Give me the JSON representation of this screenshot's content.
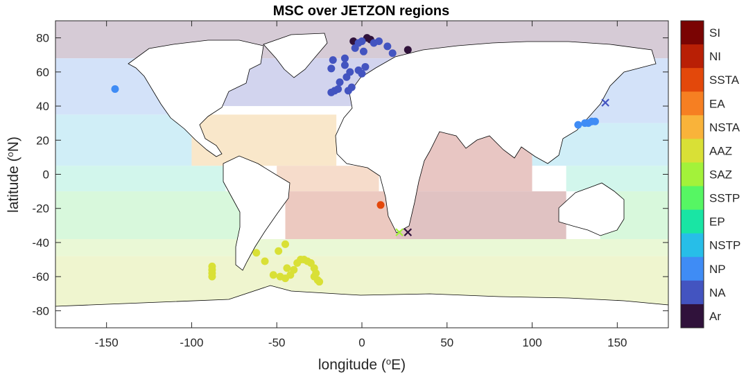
{
  "chart_data": {
    "type": "scatter",
    "title": "MSC over JETZON regions",
    "xlabel": {
      "main": "longitude (",
      "sup": "o",
      "end": "E)"
    },
    "ylabel": {
      "main": "latitude (",
      "sup": "o",
      "end": "N)"
    },
    "xlim": [
      -180,
      180
    ],
    "ylim": [
      -90,
      90
    ],
    "xticks": [
      -150,
      -100,
      -50,
      0,
      50,
      100,
      150
    ],
    "yticks": [
      80,
      60,
      40,
      20,
      0,
      -20,
      -40,
      -60,
      -80
    ],
    "colorbar": {
      "regions": [
        "SI",
        "NI",
        "SSTA",
        "EA",
        "NSTA",
        "AAZ",
        "SAZ",
        "SSTP",
        "EP",
        "NSTP",
        "NP",
        "NA",
        "Ar"
      ],
      "colors": [
        "#7a0403",
        "#b91f05",
        "#e3480b",
        "#f67f22",
        "#f9b33a",
        "#d9e036",
        "#a3f23a",
        "#56f663",
        "#19e5a4",
        "#27bee8",
        "#3f8cf5",
        "#4354c0",
        "#30123b"
      ]
    },
    "background_zones": [
      {
        "region": "Ar",
        "color": "#d6cbd6",
        "latmin": 68,
        "latmax": 90,
        "lonmin": -180,
        "lonmax": 180
      },
      {
        "region": "NA",
        "color": "#d2d4ee",
        "latmin": 40,
        "latmax": 68,
        "lonmin": -100,
        "lonmax": 40
      },
      {
        "region": "NP",
        "color": "#d3e2f9",
        "latmin": 35,
        "latmax": 68,
        "lonmin": -180,
        "lonmax": -100
      },
      {
        "region": "NP",
        "color": "#d3e2f9",
        "latmin": 30,
        "latmax": 68,
        "lonmin": 100,
        "lonmax": 180
      },
      {
        "region": "NSTP",
        "color": "#d0eef7",
        "latmin": 5,
        "latmax": 35,
        "lonmin": -180,
        "lonmax": -100
      },
      {
        "region": "NSTP",
        "color": "#d0eef7",
        "latmin": 5,
        "latmax": 30,
        "lonmin": 100,
        "lonmax": 180
      },
      {
        "region": "EP",
        "color": "#d2f6ec",
        "latmin": -10,
        "latmax": 5,
        "lonmin": -180,
        "lonmax": -80
      },
      {
        "region": "EP",
        "color": "#d2f6ec",
        "latmin": -10,
        "latmax": 5,
        "lonmin": 120,
        "lonmax": 180
      },
      {
        "region": "SSTP",
        "color": "#d8f8dc",
        "latmin": -38,
        "latmax": -10,
        "lonmin": -180,
        "lonmax": -70
      },
      {
        "region": "SSTP",
        "color": "#d8f8dc",
        "latmin": -38,
        "latmax": -10,
        "lonmin": 140,
        "lonmax": 180
      },
      {
        "region": "NSTA",
        "color": "#f9e7ca",
        "latmin": 5,
        "latmax": 35,
        "lonmin": -100,
        "lonmax": -15
      },
      {
        "region": "EA",
        "color": "#f6dccb",
        "latmin": -10,
        "latmax": 5,
        "lonmin": -50,
        "lonmax": 10
      },
      {
        "region": "SSTA",
        "color": "#ecc9c0",
        "latmin": -38,
        "latmax": -10,
        "lonmin": -45,
        "lonmax": 20
      },
      {
        "region": "NI",
        "color": "#e8c6c3",
        "latmin": -10,
        "latmax": 25,
        "lonmin": 20,
        "lonmax": 100
      },
      {
        "region": "SI",
        "color": "#e0c2c2",
        "latmin": -38,
        "latmax": -10,
        "lonmin": 20,
        "lonmax": 120
      },
      {
        "region": "SAZ",
        "color": "#eaf8d6",
        "latmin": -48,
        "latmax": -38,
        "lonmin": -180,
        "lonmax": 180
      },
      {
        "region": "AAZ",
        "color": "#eff5cf",
        "latmin": -78,
        "latmax": -48,
        "lonmin": -180,
        "lonmax": 180
      }
    ],
    "series": [
      {
        "region": "Ar",
        "color": "#30123b",
        "marker": "o",
        "points": [
          [
            -5,
            78
          ],
          [
            3,
            80
          ],
          [
            5,
            79
          ],
          [
            27,
            73
          ]
        ]
      },
      {
        "region": "Ar",
        "color": "#30123b",
        "marker": "x",
        "points": [
          [
            27,
            -34
          ]
        ]
      },
      {
        "region": "NA",
        "color": "#4354c0",
        "marker": "o",
        "points": [
          [
            -18,
            62
          ],
          [
            -17,
            67
          ],
          [
            -10,
            64
          ],
          [
            -10,
            68
          ],
          [
            -7,
            60
          ],
          [
            -2,
            61
          ],
          [
            0,
            59
          ],
          [
            2,
            63
          ],
          [
            -4,
            74
          ],
          [
            -2,
            77
          ],
          [
            0,
            78
          ],
          [
            1,
            72
          ],
          [
            7,
            77
          ],
          [
            10,
            78
          ],
          [
            15,
            75
          ],
          [
            18,
            71
          ],
          [
            -16,
            49
          ],
          [
            -18,
            48
          ],
          [
            -14,
            50
          ],
          [
            -8,
            49
          ],
          [
            -6,
            51
          ],
          [
            -9,
            57
          ],
          [
            -13,
            54
          ]
        ]
      },
      {
        "region": "NA",
        "color": "#4354c0",
        "marker": "x",
        "points": [
          [
            143,
            42
          ]
        ]
      },
      {
        "region": "NP",
        "color": "#3f8cf5",
        "marker": "o",
        "points": [
          [
            -145,
            50
          ],
          [
            127,
            29
          ],
          [
            131,
            30
          ],
          [
            133,
            30
          ],
          [
            135,
            31
          ],
          [
            137,
            31
          ]
        ]
      },
      {
        "region": "SAZ",
        "color": "#a3f23a",
        "marker": "x",
        "points": [
          [
            22,
            -34
          ]
        ]
      },
      {
        "region": "AAZ",
        "color": "#d9e036",
        "marker": "o",
        "points": [
          [
            -88,
            -54
          ],
          [
            -88,
            -56
          ],
          [
            -88,
            -58
          ],
          [
            -88,
            -60
          ],
          [
            -62,
            -46
          ],
          [
            -57,
            -51
          ],
          [
            -49,
            -45
          ],
          [
            -45,
            -41
          ],
          [
            -52,
            -59
          ],
          [
            -48,
            -60
          ],
          [
            -45,
            -61
          ],
          [
            -42,
            -59
          ],
          [
            -40,
            -56
          ],
          [
            -38,
            -52
          ],
          [
            -36,
            -50
          ],
          [
            -34,
            -50
          ],
          [
            -32,
            -51
          ],
          [
            -30,
            -52
          ],
          [
            -28,
            -55
          ],
          [
            -27,
            -58
          ],
          [
            -28,
            -60
          ],
          [
            -26,
            -62
          ],
          [
            -25,
            -63
          ],
          [
            -44,
            -55
          ]
        ]
      },
      {
        "region": "SSTA",
        "color": "#e3480b",
        "marker": "o",
        "points": [
          [
            11,
            -18
          ]
        ]
      }
    ]
  }
}
